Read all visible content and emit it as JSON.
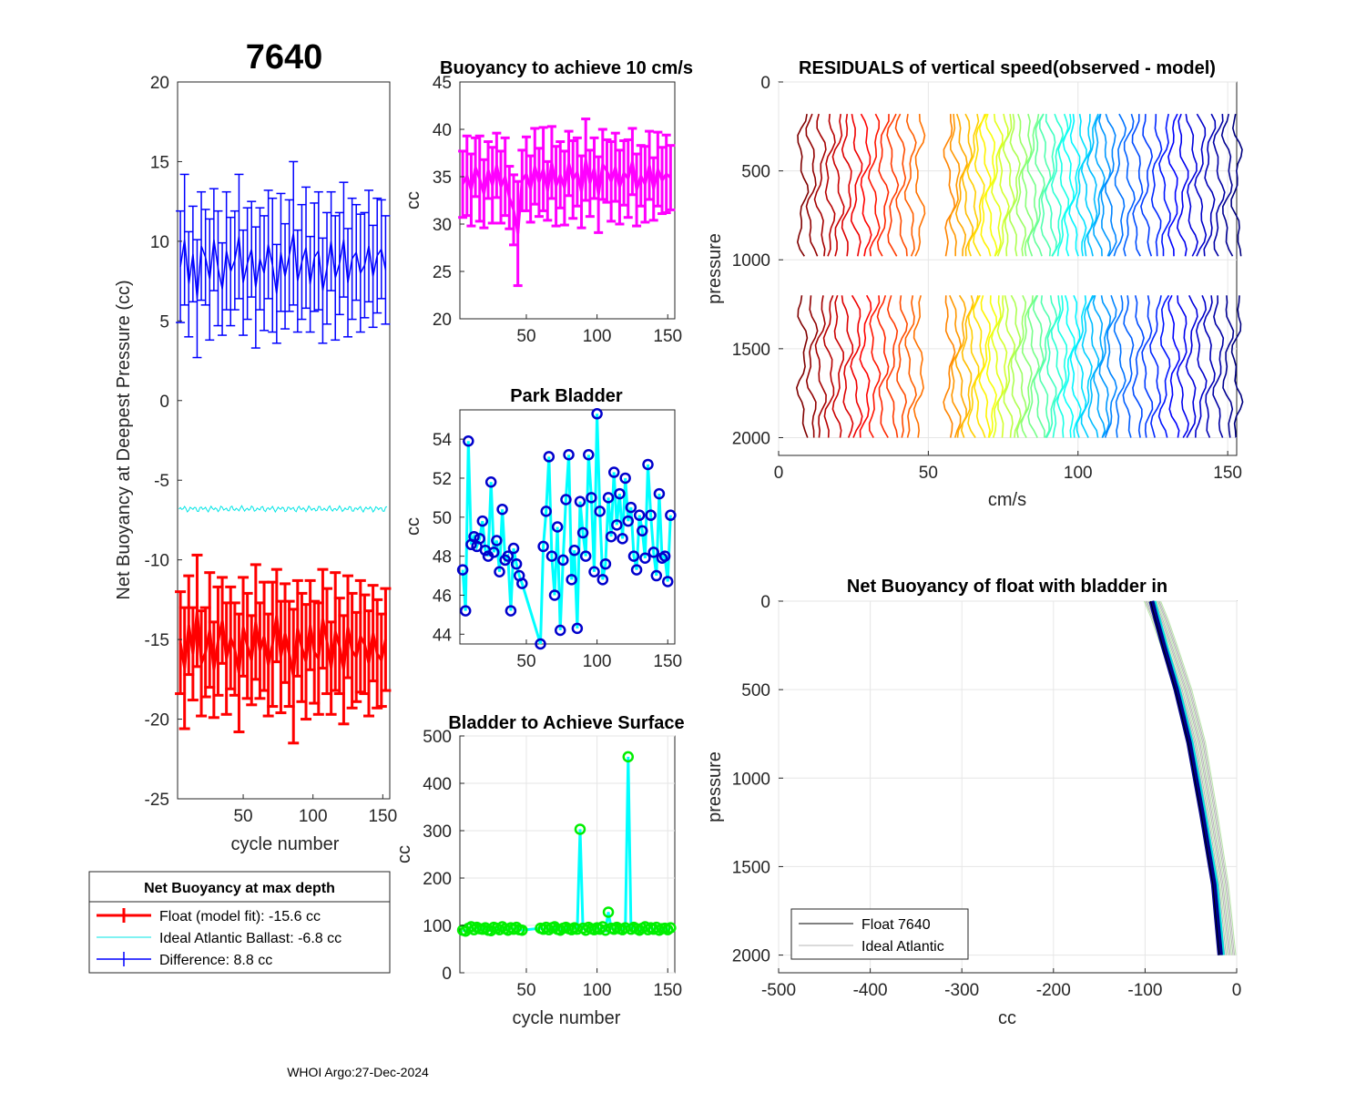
{
  "figure": {
    "main_title": "7640",
    "footer": "WHOI Argo:27-Dec-2024"
  },
  "chart_data": [
    {
      "id": "net_buoyancy",
      "type": "line",
      "title": "7640",
      "xlabel": "cycle number",
      "ylabel": "Net Buoyancy at Deepest Pressure (cc)",
      "xlim": [
        3,
        155
      ],
      "ylim": [
        -25,
        20
      ],
      "xticks": [
        50,
        100,
        150
      ],
      "yticks": [
        -25,
        -20,
        -15,
        -10,
        -5,
        0,
        5,
        10,
        15,
        20
      ],
      "series": [
        {
          "name": "Float (model fit)",
          "color": "#ff0000",
          "errorbars": true,
          "x": [
            5,
            8,
            11,
            14,
            17,
            20,
            23,
            26,
            29,
            32,
            35,
            38,
            41,
            44,
            47,
            50,
            53,
            56,
            59,
            62,
            65,
            68,
            71,
            74,
            77,
            80,
            83,
            86,
            89,
            92,
            95,
            98,
            101,
            104,
            107,
            110,
            113,
            116,
            119,
            122,
            125,
            128,
            131,
            134,
            137,
            140,
            143,
            146,
            149,
            152
          ],
          "values": [
            -15.2,
            -16.8,
            -14.1,
            -15.9,
            -13.2,
            -16.5,
            -15.8,
            -14.4,
            -16.9,
            -15.1,
            -13.8,
            -16.2,
            -14.9,
            -15.6,
            -17.1,
            -14.2,
            -15.4,
            -16.3,
            -13.9,
            -15.7,
            -14.8,
            -16.6,
            -15.3,
            -13.5,
            -16.1,
            -14.6,
            -15.9,
            -17.3,
            -14.3,
            -15.5,
            -16.4,
            -14.1,
            -15.8,
            -16.2,
            -13.7,
            -15.1,
            -16.8,
            -14.5,
            -15.4,
            -16.9,
            -14.2,
            -15.7,
            -16.1,
            -14.8,
            -15.3,
            -16.5,
            -14.6,
            -15.9,
            -16.3,
            -15.0
          ],
          "errors": [
            3.2,
            3.8,
            3.1,
            2.9,
            3.5,
            3.3,
            2.8,
            3.6,
            3.0,
            3.4,
            2.7,
            3.5,
            3.2,
            2.9,
            3.7,
            3.1,
            3.3,
            2.8,
            3.6,
            3.0,
            3.4,
            3.2,
            3.9,
            2.9,
            3.5,
            3.1,
            3.3,
            4.2,
            3.0,
            3.4,
            3.6,
            2.8,
            3.2,
            3.5,
            3.1,
            3.3,
            2.9,
            3.7,
            3.0,
            3.4,
            3.2,
            3.6,
            2.8,
            3.5,
            3.1,
            3.3,
            3.0,
            3.4,
            2.9,
            3.2
          ]
        },
        {
          "name": "Ideal Atlantic Ballast",
          "color": "#00e5e5",
          "constant": -6.8
        },
        {
          "name": "Difference",
          "color": "#0000ff",
          "errorbars": true,
          "x": [
            5,
            8,
            11,
            14,
            17,
            20,
            23,
            26,
            29,
            32,
            35,
            38,
            41,
            44,
            47,
            50,
            53,
            56,
            59,
            62,
            65,
            68,
            71,
            74,
            77,
            80,
            83,
            86,
            89,
            92,
            95,
            98,
            101,
            104,
            107,
            110,
            113,
            116,
            119,
            122,
            125,
            128,
            131,
            134,
            137,
            140,
            143,
            146,
            149,
            152
          ],
          "values": [
            8.4,
            10.1,
            7.3,
            9.2,
            6.4,
            9.7,
            9.0,
            7.6,
            10.1,
            8.3,
            7.0,
            9.4,
            8.1,
            8.8,
            10.3,
            7.4,
            8.6,
            9.5,
            7.1,
            8.9,
            8.0,
            9.8,
            8.5,
            6.7,
            9.3,
            7.8,
            9.1,
            10.5,
            7.5,
            8.7,
            9.6,
            7.3,
            9.0,
            9.4,
            6.9,
            8.3,
            10.0,
            7.7,
            8.6,
            10.1,
            7.4,
            8.9,
            9.3,
            8.0,
            8.5,
            9.7,
            7.8,
            9.1,
            9.5,
            8.2
          ],
          "errors": [
            3.5,
            4.1,
            3.3,
            3.0,
            3.7,
            3.4,
            3.0,
            3.8,
            3.2,
            3.6,
            2.9,
            3.7,
            3.4,
            3.1,
            3.9,
            3.3,
            3.5,
            3.0,
            3.8,
            3.2,
            3.6,
            3.4,
            4.2,
            3.1,
            3.7,
            3.3,
            3.5,
            4.5,
            3.2,
            3.6,
            3.8,
            3.0,
            3.4,
            3.7,
            3.3,
            3.5,
            3.1,
            3.9,
            3.2,
            3.6,
            3.4,
            3.8,
            3.0,
            3.7,
            3.3,
            3.5,
            3.2,
            3.6,
            3.1,
            3.4
          ]
        }
      ],
      "legend": {
        "title": "Net Buoyancy at max depth",
        "entries": [
          "Float (model fit): -15.6 cc",
          "Ideal Atlantic Ballast:  -6.8 cc",
          "Difference:   8.8 cc"
        ]
      }
    },
    {
      "id": "buoyancy_10cms",
      "type": "line",
      "title": "Buoyancy to achieve 10 cm/s",
      "xlabel": "",
      "ylabel": "cc",
      "xlim": [
        3,
        155
      ],
      "ylim": [
        20,
        45
      ],
      "xticks": [
        50,
        100,
        150
      ],
      "yticks": [
        20,
        25,
        30,
        35,
        40,
        45
      ],
      "series": [
        {
          "name": "buoyancy",
          "color": "#ff00ff",
          "errorbars": true,
          "x": [
            5,
            8,
            11,
            14,
            17,
            20,
            23,
            26,
            29,
            32,
            35,
            38,
            41,
            44,
            47,
            50,
            53,
            56,
            59,
            62,
            65,
            68,
            71,
            74,
            77,
            80,
            83,
            86,
            89,
            92,
            95,
            98,
            101,
            104,
            107,
            110,
            113,
            116,
            119,
            122,
            125,
            128,
            131,
            134,
            137,
            140,
            143,
            146,
            149,
            152
          ],
          "values": [
            34.2,
            35.1,
            33.6,
            36.0,
            34.8,
            33.2,
            35.7,
            34.1,
            36.2,
            33.9,
            35.0,
            32.8,
            31.5,
            29.0,
            34.6,
            35.3,
            33.7,
            36.1,
            34.4,
            35.8,
            33.5,
            36.5,
            34.0,
            35.2,
            33.8,
            36.4,
            34.7,
            35.5,
            33.4,
            36.8,
            34.3,
            35.9,
            33.1,
            36.3,
            35.6,
            34.5,
            36.0,
            33.9,
            35.4,
            34.8,
            36.6,
            33.6,
            35.1,
            34.2,
            36.2,
            33.7,
            35.8,
            34.6,
            35.3,
            34.9
          ],
          "errors": [
            3.5,
            4.2,
            3.8,
            3.1,
            4.5,
            3.6,
            3.0,
            4.0,
            3.4,
            3.8,
            4.1,
            3.3,
            3.7,
            5.5,
            3.2,
            3.9,
            3.5,
            4.0,
            3.6,
            4.4,
            3.1,
            3.8,
            4.2,
            3.5,
            3.9,
            3.4,
            4.1,
            3.6,
            3.8,
            4.3,
            3.5,
            3.2,
            4.0,
            3.7,
            3.3,
            4.2,
            3.6,
            3.9,
            3.4,
            4.1,
            3.5,
            3.8,
            3.2,
            4.0,
            3.6,
            3.3,
            3.9,
            3.5,
            4.1,
            3.4
          ]
        }
      ]
    },
    {
      "id": "park_bladder",
      "type": "line",
      "title": "Park Bladder",
      "xlabel": "",
      "ylabel": "cc",
      "xlim": [
        3,
        155
      ],
      "ylim": [
        43.5,
        55.5
      ],
      "xticks": [
        50,
        100,
        150
      ],
      "yticks": [
        44,
        46,
        48,
        50,
        52,
        54
      ],
      "series": [
        {
          "name": "park bladder",
          "color": "#00ffff",
          "marker_color": "#0000cc",
          "x": [
            5,
            7,
            9,
            11,
            13,
            15,
            17,
            19,
            21,
            23,
            25,
            27,
            29,
            31,
            33,
            35,
            37,
            39,
            41,
            43,
            45,
            47,
            60,
            62,
            64,
            66,
            68,
            70,
            72,
            74,
            76,
            78,
            80,
            82,
            84,
            86,
            88,
            90,
            92,
            94,
            96,
            98,
            100,
            102,
            104,
            106,
            108,
            110,
            112,
            114,
            116,
            118,
            120,
            122,
            124,
            126,
            128,
            130,
            132,
            134,
            136,
            138,
            140,
            142,
            144,
            146,
            148,
            150,
            152
          ],
          "values": [
            47.3,
            45.2,
            53.9,
            48.6,
            49.0,
            48.5,
            48.9,
            49.8,
            48.3,
            48.0,
            51.8,
            48.2,
            48.8,
            47.2,
            50.4,
            47.8,
            48.0,
            45.2,
            48.4,
            47.6,
            47.0,
            46.6,
            43.5,
            48.5,
            50.3,
            53.1,
            48.0,
            46.0,
            49.5,
            44.2,
            47.8,
            50.9,
            53.2,
            46.8,
            48.3,
            44.3,
            50.8,
            49.2,
            48.0,
            53.2,
            51.0,
            47.2,
            55.3,
            50.3,
            46.8,
            47.6,
            51.0,
            49.0,
            52.3,
            49.6,
            51.2,
            48.9,
            52.0,
            49.8,
            50.5,
            48.0,
            47.3,
            50.1,
            49.3,
            47.9,
            52.7,
            50.1,
            48.2,
            47.0,
            51.2,
            47.9,
            48.0,
            46.7,
            50.1
          ]
        }
      ]
    },
    {
      "id": "bladder_surface",
      "type": "line",
      "title": "Bladder to Achieve Surface",
      "xlabel": "cycle number",
      "ylabel": "cc",
      "xlim": [
        3,
        155
      ],
      "ylim": [
        0,
        500
      ],
      "xticks": [
        50,
        100,
        150
      ],
      "yticks": [
        0,
        100,
        200,
        300,
        400,
        500
      ],
      "series": [
        {
          "name": "bladder to surface",
          "color": "#00ffff",
          "marker_color": "#00ee00",
          "x": [
            5,
            7,
            9,
            11,
            13,
            15,
            17,
            19,
            21,
            23,
            25,
            27,
            29,
            31,
            33,
            35,
            37,
            39,
            41,
            43,
            45,
            47,
            60,
            62,
            64,
            66,
            68,
            70,
            72,
            74,
            76,
            78,
            80,
            82,
            84,
            86,
            88,
            90,
            92,
            94,
            96,
            98,
            100,
            102,
            104,
            106,
            108,
            110,
            112,
            114,
            116,
            118,
            120,
            122,
            124,
            126,
            128,
            130,
            132,
            134,
            136,
            138,
            140,
            142,
            144,
            146,
            148,
            150,
            152
          ],
          "values": [
            90,
            88,
            94,
            97,
            91,
            96,
            93,
            92,
            95,
            90,
            89,
            96,
            94,
            91,
            97,
            93,
            90,
            95,
            92,
            96,
            91,
            90,
            94,
            92,
            96,
            91,
            95,
            97,
            92,
            90,
            94,
            96,
            93,
            91,
            95,
            92,
            303,
            94,
            90,
            96,
            93,
            91,
            95,
            92,
            97,
            90,
            128,
            94,
            92,
            96,
            93,
            91,
            95,
            456,
            92,
            96,
            93,
            90,
            94,
            97,
            91,
            95,
            92,
            96,
            90,
            93,
            94,
            91,
            95
          ]
        }
      ]
    },
    {
      "id": "residuals",
      "type": "line",
      "title": "RESIDUALS of vertical speed(observed - model)",
      "xlabel": "cm/s",
      "ylabel": "pressure",
      "xlim": [
        0,
        153
      ],
      "ylim": [
        0,
        2100
      ],
      "y_reversed": true,
      "xticks": [
        0,
        50,
        100,
        150
      ],
      "yticks": [
        0,
        500,
        1000,
        1500,
        2000
      ],
      "colormap": "jet",
      "series": [
        {
          "name": "profile offsets (cm/s)",
          "offsets": [
            8,
            11,
            14,
            17,
            20,
            23,
            26,
            29,
            32,
            35,
            38,
            41,
            44,
            47,
            57,
            59,
            61,
            63,
            65,
            67,
            69,
            71,
            73,
            75,
            77,
            79,
            81,
            83,
            85,
            87,
            89,
            91,
            93,
            95,
            97,
            99,
            101,
            103,
            105,
            107,
            109,
            111,
            114,
            117,
            120,
            123,
            126,
            129,
            132,
            135,
            138,
            141,
            144,
            147,
            150,
            153
          ],
          "profile_depth_ranges": [
            [
              180,
              1000
            ],
            [
              1200,
              2000
            ]
          ]
        }
      ]
    },
    {
      "id": "net_buoyancy_profile",
      "type": "line",
      "title": "Net Buoyancy of float with bladder in",
      "xlabel": "cc",
      "ylabel": "pressure",
      "xlim": [
        -500,
        0
      ],
      "ylim": [
        0,
        2100
      ],
      "y_reversed": true,
      "xticks": [
        -500,
        -400,
        -300,
        -200,
        -100,
        0
      ],
      "yticks": [
        0,
        500,
        1000,
        1500,
        2000
      ],
      "series": [
        {
          "name": "Float 7640",
          "color": "#000000",
          "x": [
            -93,
            -88,
            -80,
            -66,
            -52,
            -38,
            -25,
            -18
          ],
          "pressure": [
            0,
            100,
            250,
            500,
            800,
            1200,
            1600,
            2000
          ]
        },
        {
          "name": "Ideal Atlantic",
          "color": "#b4b4b4",
          "x": [
            -92,
            -84,
            -74,
            -58,
            -43,
            -30,
            -18,
            -10
          ],
          "pressure": [
            0,
            100,
            250,
            500,
            800,
            1200,
            1600,
            2000
          ]
        }
      ],
      "legend": {
        "entries": [
          "Float 7640",
          "Ideal Atlantic"
        ]
      }
    }
  ]
}
